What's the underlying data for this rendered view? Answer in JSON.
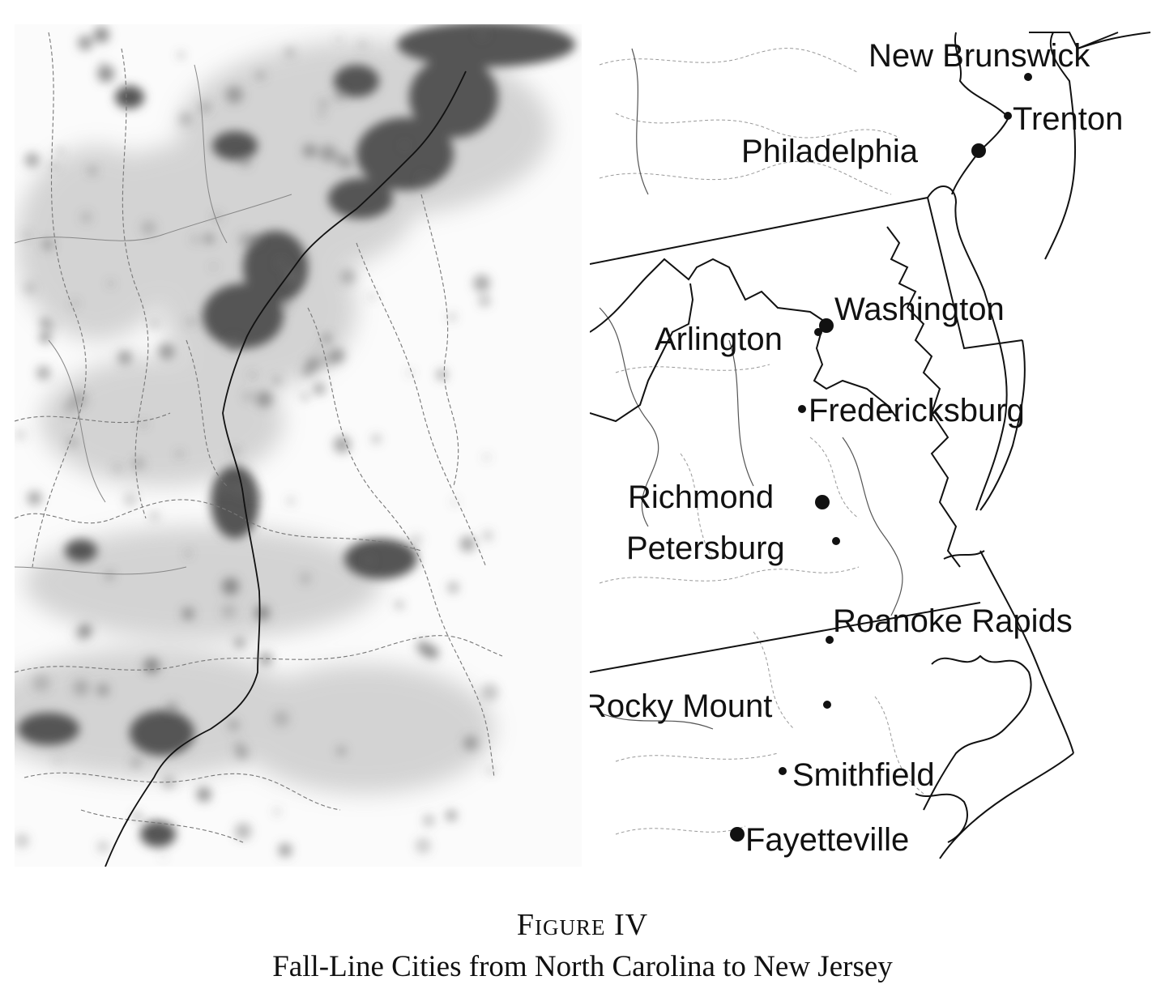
{
  "figure": {
    "label": "Figure IV",
    "title": "Fall-Line Cities from North Carolina to New Jersey"
  },
  "colors": {
    "ink": "#111111",
    "density": "#555555",
    "background": "#ffffff"
  },
  "cities": [
    {
      "name": "New Brunswick",
      "dot": "small"
    },
    {
      "name": "Trenton",
      "dot": "small"
    },
    {
      "name": "Philadelphia",
      "dot": "large"
    },
    {
      "name": "Washington",
      "dot": "large"
    },
    {
      "name": "Arlington",
      "dot": "small"
    },
    {
      "name": "Fredericksburg",
      "dot": "small"
    },
    {
      "name": "Richmond",
      "dot": "large"
    },
    {
      "name": "Petersburg",
      "dot": "small"
    },
    {
      "name": "Roanoke Rapids",
      "dot": "small"
    },
    {
      "name": "Rocky Mount",
      "dot": "small"
    },
    {
      "name": "Smithfield",
      "dot": "small"
    },
    {
      "name": "Fayetteville",
      "dot": "large"
    }
  ]
}
